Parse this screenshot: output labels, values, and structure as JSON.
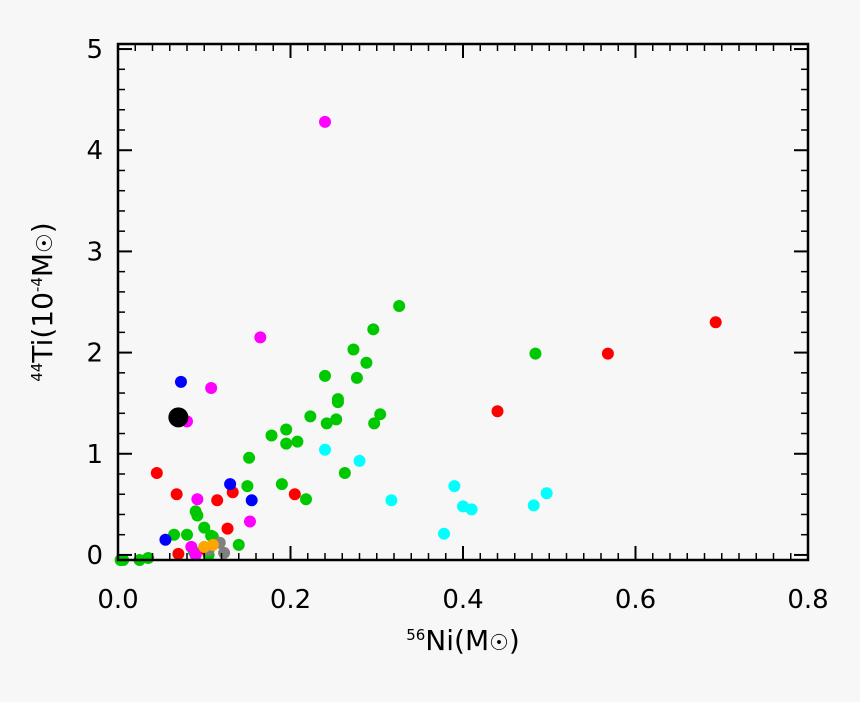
{
  "chart_data": {
    "type": "scatter",
    "xlabel_prefix": "56",
    "xlabel_main": "Ni(M",
    "xlabel_suffix": ")",
    "ylabel_prefix": "44",
    "ylabel_main": "Ti(10",
    "ylabel_exp": "-4",
    "ylabel_unit": "M",
    "ylabel_suffix": ")",
    "xlim": [
      0.0,
      0.8
    ],
    "ylim": [
      -0.05,
      5.05
    ],
    "x_ticks": [
      0.0,
      0.2,
      0.4,
      0.6,
      0.8
    ],
    "x_tick_labels": [
      "0.0",
      "0.2",
      "0.4",
      "0.6",
      "0.8"
    ],
    "y_ticks": [
      0,
      1,
      2,
      3,
      4,
      5
    ],
    "y_tick_labels": [
      "0",
      "1",
      "2",
      "3",
      "4",
      "5"
    ],
    "grid": false,
    "colors": {
      "green": "#00c800",
      "red": "#ff0000",
      "cyan": "#00ffff",
      "blue": "#0000ff",
      "magenta": "#ff00ff",
      "black": "#000000",
      "gray": "#808080",
      "orange": "#ffa500"
    },
    "series": [
      {
        "color": "green",
        "x": [
          0.003,
          0.006,
          0.025,
          0.035,
          0.065,
          0.08,
          0.088,
          0.09,
          0.092,
          0.1,
          0.105,
          0.108,
          0.11,
          0.14,
          0.15,
          0.152,
          0.178,
          0.19,
          0.195,
          0.195,
          0.208,
          0.218,
          0.223,
          0.24,
          0.242,
          0.253,
          0.255,
          0.255,
          0.263,
          0.273,
          0.277,
          0.288,
          0.296,
          0.297,
          0.304,
          0.326,
          0.484
        ],
        "y": [
          -0.05,
          -0.05,
          -0.05,
          -0.03,
          0.2,
          0.2,
          0.03,
          0.43,
          0.39,
          0.27,
          0.0,
          0.19,
          0.18,
          0.1,
          0.68,
          0.96,
          1.18,
          0.7,
          1.1,
          1.24,
          1.12,
          0.55,
          1.37,
          1.77,
          1.3,
          1.34,
          1.51,
          1.54,
          0.81,
          2.03,
          1.75,
          1.9,
          2.23,
          1.3,
          1.39,
          2.46,
          1.99
        ]
      },
      {
        "color": "red",
        "x": [
          0.045,
          0.068,
          0.07,
          0.1,
          0.115,
          0.127,
          0.133,
          0.205,
          0.44,
          0.568,
          0.693
        ],
        "y": [
          0.81,
          0.6,
          0.01,
          0.06,
          0.54,
          0.26,
          0.62,
          0.6,
          1.42,
          1.99,
          2.3
        ]
      },
      {
        "color": "cyan",
        "x": [
          0.24,
          0.28,
          0.317,
          0.378,
          0.39,
          0.4,
          0.41,
          0.482,
          0.497
        ],
        "y": [
          1.04,
          0.93,
          0.54,
          0.21,
          0.68,
          0.48,
          0.45,
          0.49,
          0.61
        ]
      },
      {
        "color": "blue",
        "x": [
          0.055,
          0.073,
          0.13,
          0.155
        ],
        "y": [
          0.15,
          1.71,
          0.7,
          0.54
        ]
      },
      {
        "color": "magenta",
        "x": [
          0.08,
          0.085,
          0.09,
          0.092,
          0.108,
          0.153,
          0.165,
          0.24
        ],
        "y": [
          1.32,
          0.08,
          0.0,
          0.55,
          1.65,
          0.33,
          2.15,
          4.28
        ]
      },
      {
        "color": "gray",
        "x": [
          0.105,
          0.118,
          0.123
        ],
        "y": [
          0.05,
          0.12,
          0.02
        ]
      },
      {
        "color": "orange",
        "x": [
          0.1,
          0.11
        ],
        "y": [
          0.08,
          0.1
        ]
      },
      {
        "color": "black",
        "x": [
          0.07
        ],
        "y": [
          1.36
        ],
        "large": true
      }
    ]
  }
}
